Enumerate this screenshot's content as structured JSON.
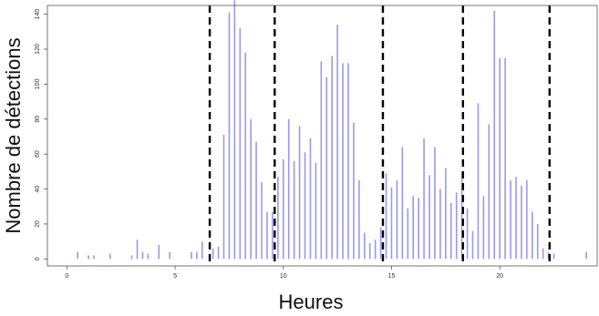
{
  "chart_data": {
    "type": "bar",
    "xlabel": "Heures",
    "ylabel": "Nombre de détections",
    "xlim": [
      -0.9,
      24.5
    ],
    "ylim": [
      -4,
      145
    ],
    "xticks": [
      0,
      5,
      10,
      15,
      20
    ],
    "yticks": [
      0,
      20,
      40,
      60,
      80,
      100,
      120,
      140
    ],
    "bar_color": "#9999ee",
    "line_color": "#000000",
    "vlines": [
      6.6,
      9.6,
      14.6,
      18.3,
      22.3
    ],
    "x": [
      0.5,
      1.0,
      1.25,
      2.0,
      3.0,
      3.25,
      3.5,
      3.75,
      4.25,
      4.75,
      5.75,
      6.0,
      6.25,
      6.75,
      7.0,
      7.25,
      7.5,
      7.75,
      8.0,
      8.25,
      8.5,
      8.75,
      9.0,
      9.25,
      9.5,
      9.75,
      10.0,
      10.25,
      10.5,
      10.75,
      11.0,
      11.25,
      11.5,
      11.75,
      12.0,
      12.25,
      12.5,
      12.75,
      13.0,
      13.25,
      13.5,
      13.75,
      14.0,
      14.25,
      14.5,
      14.75,
      15.0,
      15.25,
      15.5,
      15.75,
      16.0,
      16.25,
      16.5,
      16.75,
      17.0,
      17.25,
      17.5,
      17.75,
      18.0,
      18.25,
      18.5,
      18.75,
      19.0,
      19.25,
      19.5,
      19.75,
      20.0,
      20.25,
      20.5,
      20.75,
      21.0,
      21.25,
      21.5,
      21.75,
      22.0,
      22.25,
      22.5,
      24.0
    ],
    "values": [
      4,
      2,
      2,
      3,
      2,
      11,
      4,
      3,
      8,
      4,
      4,
      4,
      10,
      6,
      7,
      71,
      141,
      148,
      132,
      118,
      80,
      67,
      44,
      27,
      27,
      47,
      57,
      80,
      56,
      76,
      61,
      69,
      55,
      113,
      104,
      116,
      134,
      112,
      112,
      78,
      45,
      15,
      9,
      11,
      18,
      49,
      41,
      45,
      64,
      29,
      36,
      35,
      69,
      48,
      64,
      40,
      52,
      32,
      38,
      50,
      29,
      16,
      89,
      36,
      77,
      142,
      115,
      115,
      45,
      47,
      42,
      45,
      27,
      20,
      6,
      4,
      3,
      4
    ]
  }
}
